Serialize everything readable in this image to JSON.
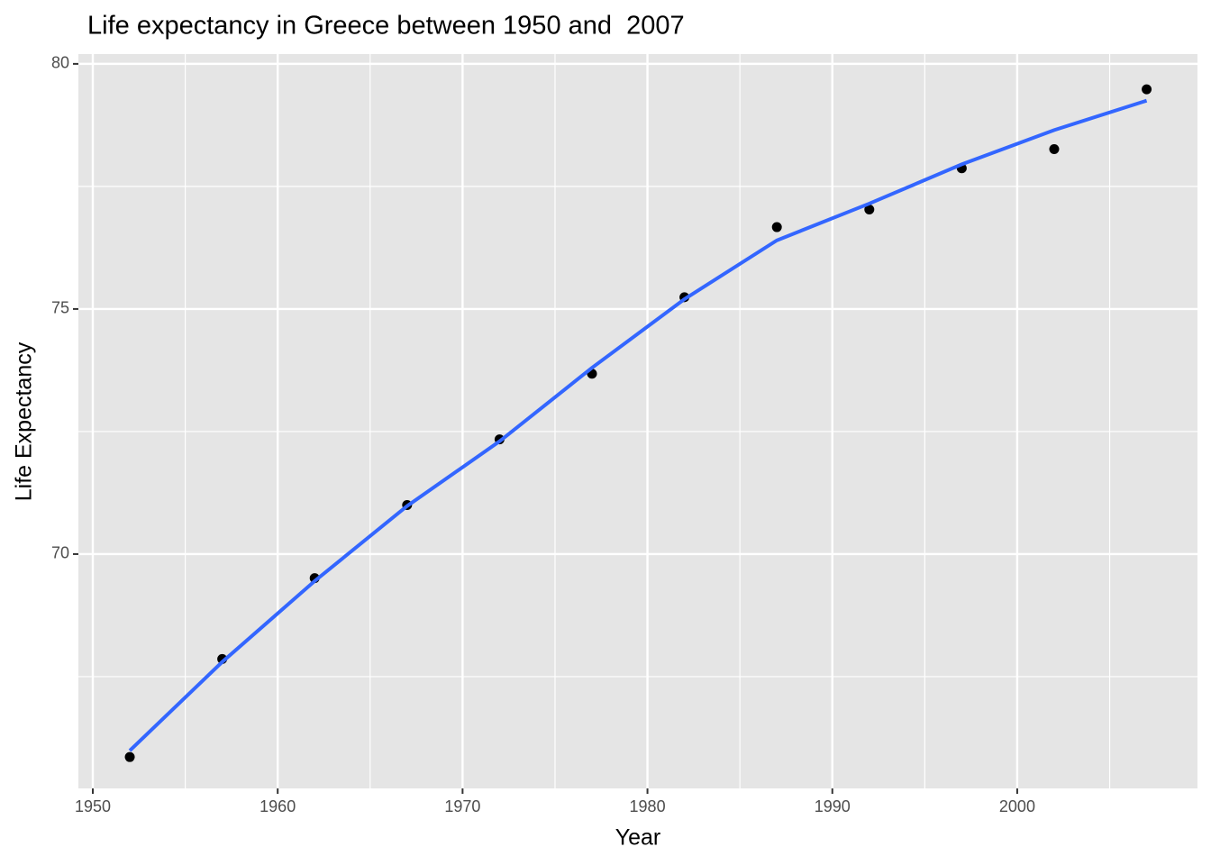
{
  "chart_data": {
    "type": "scatter",
    "title": "Life expectancy in Greece between 1950 and  2007",
    "x_label": "Year",
    "y_label": "Life Expectancy",
    "series": [
      {
        "kind": "points",
        "color": "#000000",
        "x": [
          1952,
          1957,
          1962,
          1967,
          1972,
          1977,
          1982,
          1987,
          1992,
          1997,
          2002,
          2007
        ],
        "values": [
          65.86,
          67.86,
          69.51,
          71.0,
          72.34,
          73.68,
          75.24,
          76.67,
          77.03,
          77.87,
          78.26,
          79.48
        ]
      },
      {
        "kind": "smooth",
        "color": "#3366ff",
        "x": [
          1952,
          1957,
          1962,
          1967,
          1972,
          1977,
          1982,
          1987,
          1992,
          1997,
          2002,
          2007
        ],
        "values": [
          65.99,
          67.8,
          69.45,
          70.98,
          72.3,
          73.8,
          75.2,
          76.4,
          77.15,
          77.95,
          78.65,
          79.25
        ]
      }
    ],
    "xlim": [
      1949.22,
      2009.75
    ],
    "ylim": [
      65.22,
      80.2
    ],
    "xticks": [
      1950,
      1960,
      1970,
      1980,
      1990,
      2000
    ],
    "yticks": [
      70,
      75,
      80
    ],
    "minor_xticks": [
      1955,
      1965,
      1975,
      1985,
      1995,
      2005
    ],
    "minor_yticks": [
      67.5,
      72.5,
      77.5
    ],
    "grid": true
  }
}
